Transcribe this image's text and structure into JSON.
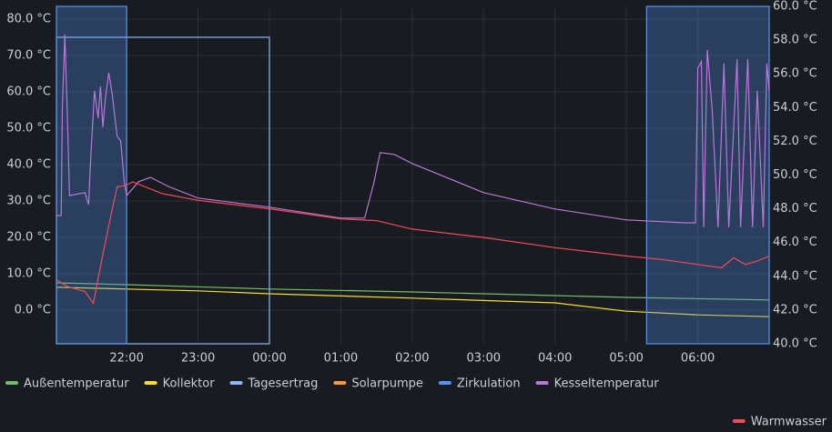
{
  "chart_data": {
    "type": "line",
    "xlim": [
      "21:01",
      "07:00"
    ],
    "xticks": [
      "22:00",
      "23:00",
      "00:00",
      "01:00",
      "02:00",
      "03:00",
      "04:00",
      "05:00",
      "06:00"
    ],
    "ylim": [
      -9.25,
      83.5
    ],
    "yticks": [
      {
        "value": 0,
        "label": "0.0 °C"
      },
      {
        "value": 10,
        "label": "10.0 °C"
      },
      {
        "value": 20,
        "label": "20.0 °C"
      },
      {
        "value": 30,
        "label": "30.0 °C"
      },
      {
        "value": 40,
        "label": "40.0 °C"
      },
      {
        "value": 50,
        "label": "50.0 °C"
      },
      {
        "value": 60,
        "label": "60.0 °C"
      },
      {
        "value": 70,
        "label": "70.0 °C"
      },
      {
        "value": 80,
        "label": "80.0 °C"
      }
    ],
    "y2lim": [
      40,
      60
    ],
    "y2ticks": [
      {
        "value": 40,
        "label": "40.0 °C"
      },
      {
        "value": 42,
        "label": "42.0 °C"
      },
      {
        "value": 44,
        "label": "44.0 °C"
      },
      {
        "value": 46,
        "label": "46.0 °C"
      },
      {
        "value": 48,
        "label": "48.0 °C"
      },
      {
        "value": 50,
        "label": "50.0 °C"
      },
      {
        "value": 52,
        "label": "52.0 °C"
      },
      {
        "value": 54,
        "label": "54.0 °C"
      },
      {
        "value": 56,
        "label": "56.0 °C"
      },
      {
        "value": 58,
        "label": "58.0 °C"
      },
      {
        "value": 60,
        "label": "60.0 °C"
      }
    ],
    "grid": true,
    "legend": "bottom",
    "series": [
      {
        "name": "Außentemperatur",
        "color": "#73bf69",
        "style": "line",
        "x": [
          "21:01",
          "22:00",
          "00:00",
          "02:00",
          "04:00",
          "05:00",
          "07:00"
        ],
        "values": [
          7.5,
          7.0,
          5.8,
          5.0,
          4.0,
          3.5,
          2.8
        ]
      },
      {
        "name": "Kollektor",
        "color": "#fade2a",
        "style": "line",
        "x": [
          "21:01",
          "22:00",
          "23:00",
          "00:00",
          "02:00",
          "04:00",
          "05:00",
          "06:00",
          "07:00"
        ],
        "values": [
          6.3,
          5.8,
          5.3,
          4.5,
          3.3,
          2.0,
          -0.3,
          -1.3,
          -1.8
        ]
      },
      {
        "name": "Tagesertrag",
        "color": "#8ab8ff",
        "style": "step-area",
        "x": [
          "21:01",
          "00:00"
        ],
        "values": [
          75,
          null
        ]
      },
      {
        "name": "Solarpumpe",
        "color": "#ff9830",
        "style": "step-area",
        "ylim": [
          0,
          1
        ],
        "x": [
          "21:01"
        ],
        "values": [
          0
        ]
      },
      {
        "name": "Zirkulation",
        "color": "#5794f2",
        "style": "step-area",
        "ylim": [
          0,
          1
        ],
        "x": [
          "21:01",
          "22:00",
          "05:17"
        ],
        "values": [
          1,
          0,
          1
        ]
      },
      {
        "name": "Kesseltemperatur",
        "color": "#b877d9",
        "style": "line",
        "x": [
          "21:01",
          "21:05",
          "21:06",
          "21:08",
          "21:10",
          "21:12",
          "21:25",
          "21:28",
          "21:30",
          "21:33",
          "21:36",
          "21:38",
          "21:40",
          "21:42",
          "21:45",
          "21:48",
          "21:52",
          "21:55",
          "21:58",
          "22:00",
          "22:10",
          "22:20",
          "22:35",
          "23:00",
          "00:00",
          "01:00",
          "01:20",
          "01:28",
          "01:33",
          "01:45",
          "02:00",
          "03:00",
          "04:00",
          "05:00",
          "05:50",
          "05:58",
          "06:00",
          "06:03",
          "06:05",
          "06:08",
          "06:12",
          "06:17",
          "06:22",
          "06:26",
          "06:33",
          "06:36",
          "06:42",
          "06:46",
          "06:50",
          "06:55",
          "06:58",
          "07:00"
        ],
        "values": [
          26,
          26,
          55.3,
          75.8,
          55.3,
          31.5,
          32.3,
          29,
          42.8,
          60.3,
          52.8,
          61.5,
          50.3,
          57.8,
          65.3,
          59,
          47.8,
          46.5,
          35.3,
          31.5,
          35.3,
          36.5,
          34,
          30.8,
          28.3,
          25.3,
          25.3,
          35.3,
          43.3,
          42.8,
          40.3,
          32.3,
          27.8,
          24.8,
          24,
          24,
          66.5,
          68.3,
          22.8,
          71.5,
          55.3,
          22.8,
          67.8,
          22.8,
          69,
          22.8,
          69,
          22.8,
          60.3,
          22.8,
          67.8,
          60.3
        ]
      },
      {
        "name": "Warmwasser",
        "color": "#f2495c",
        "style": "line",
        "axis": "y2",
        "x": [
          "21:01",
          "21:10",
          "21:25",
          "21:32",
          "21:40",
          "21:48",
          "21:52",
          "22:00",
          "22:05",
          "22:30",
          "23:00",
          "00:00",
          "01:00",
          "01:30",
          "02:00",
          "03:00",
          "04:00",
          "05:00",
          "05:30",
          "06:00",
          "06:20",
          "06:30",
          "06:40",
          "06:50",
          "07:00"
        ],
        "values": [
          43.8,
          43.4,
          43.1,
          42.4,
          45.3,
          48.0,
          49.3,
          49.4,
          49.6,
          48.9,
          48.5,
          48.0,
          47.4,
          47.3,
          46.8,
          46.3,
          45.7,
          45.2,
          45.0,
          44.7,
          44.5,
          45.1,
          44.7,
          44.9,
          45.2
        ]
      }
    ]
  }
}
